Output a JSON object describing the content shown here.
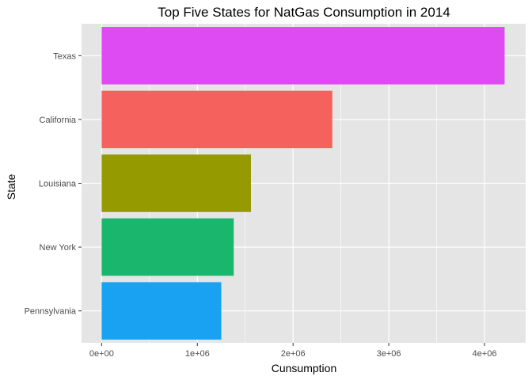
{
  "chart_data": {
    "type": "bar",
    "orientation": "horizontal",
    "title": "Top Five States for NatGas Consumption in 2014",
    "xlabel": "Cunsumption",
    "ylabel": "State",
    "categories": [
      "Pennsylvania",
      "New York",
      "Louisiana",
      "California",
      "Texas"
    ],
    "values": [
      1250000,
      1380000,
      1560000,
      2410000,
      4210000
    ],
    "colors": [
      "#19A2F2",
      "#1BB66D",
      "#959A00",
      "#F5625E",
      "#DE4BF2"
    ],
    "xlim": [
      -210000,
      4430000
    ],
    "xticks": [
      0,
      1000000,
      2000000,
      3000000,
      4000000
    ],
    "xtick_labels": [
      "0e+00",
      "1e+06",
      "2e+06",
      "3e+06",
      "4e+06"
    ],
    "grid": true,
    "legend": "none",
    "panel_background": "#E5E5E5",
    "grid_color": "#FFFFFF"
  }
}
